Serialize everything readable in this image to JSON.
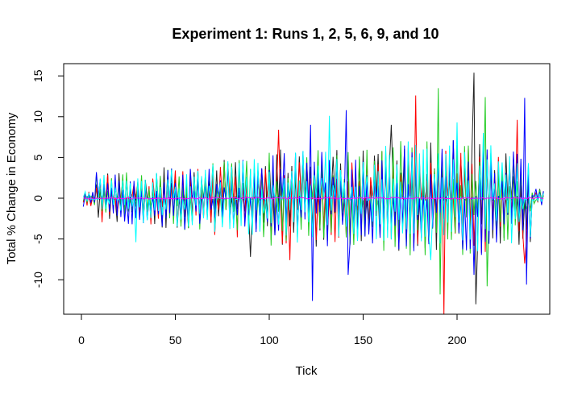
{
  "chart_data": {
    "type": "line",
    "title": "Experiment 1: Runs 1, 2, 5, 6, 9, and 10",
    "xlabel": "Tick",
    "ylabel": "Total % Change in Economy",
    "xlim": [
      1,
      246
    ],
    "ylim": [
      -14,
      16
    ],
    "x_ticks": [
      0,
      50,
      100,
      150,
      200
    ],
    "y_ticks": [
      -10,
      -5,
      0,
      5,
      10,
      15
    ],
    "grid": false,
    "legend": "none",
    "series": [
      {
        "color": "#222222",
        "seed": 11,
        "peaks": [
          [
            209,
            15.4
          ],
          [
            210,
            -13.0
          ],
          [
            90,
            -7.2
          ],
          [
            165,
            9.0
          ],
          [
            200,
            6.2
          ]
        ]
      },
      {
        "color": "#ff0000",
        "seed": 23,
        "peaks": [
          [
            193,
            -14.5
          ],
          [
            178,
            12.6
          ],
          [
            105,
            8.4
          ],
          [
            232,
            9.6
          ],
          [
            111,
            -7.6
          ],
          [
            236,
            -8.0
          ]
        ]
      },
      {
        "color": "#22cc22",
        "seed": 37,
        "peaks": [
          [
            190,
            13.5
          ],
          [
            191,
            -11.8
          ],
          [
            215,
            12.4
          ],
          [
            216,
            -10.8
          ],
          [
            183,
            -7.0
          ]
        ]
      },
      {
        "color": "#0000ff",
        "seed": 41,
        "peaks": [
          [
            122,
            9.0
          ],
          [
            123,
            -12.6
          ],
          [
            141,
            10.8
          ],
          [
            142,
            -9.4
          ],
          [
            236,
            12.3
          ],
          [
            237,
            -10.6
          ],
          [
            209,
            -9.4
          ]
        ]
      },
      {
        "color": "#00ffff",
        "seed": 53,
        "peaks": [
          [
            29,
            -5.4
          ],
          [
            132,
            10.1
          ],
          [
            200,
            9.3
          ],
          [
            214,
            8.0
          ],
          [
            186,
            -7.6
          ]
        ]
      },
      {
        "color": "#ff00ff",
        "seed": 67,
        "peaks": []
      }
    ]
  }
}
